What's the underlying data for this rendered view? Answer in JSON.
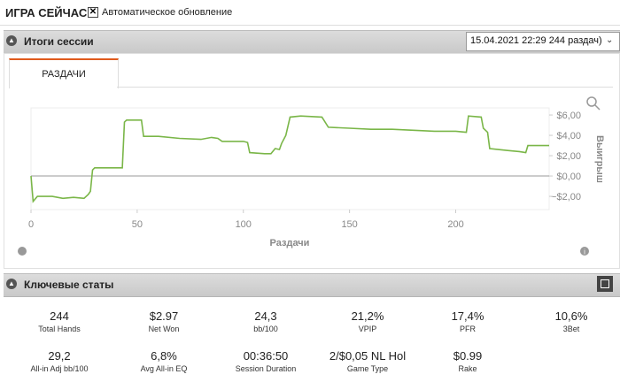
{
  "header": {
    "title": "ИГРА СЕЙЧАС",
    "auto_update": "Автоматическое обновление"
  },
  "session": {
    "title": "Итоги сессии",
    "dropdown": "15.04.2021 22:29 244 раздач)",
    "tab": "РАЗДАЧИ"
  },
  "chart_data": {
    "type": "line",
    "color": "#7ab648",
    "x_label": "Раздачи",
    "y_label": "Выигрыш",
    "x": [
      0,
      1,
      3,
      10,
      15,
      20,
      25,
      27,
      28,
      29,
      30,
      43,
      44,
      45,
      52,
      53,
      60,
      70,
      80,
      85,
      88,
      90,
      100,
      102,
      103,
      110,
      113,
      115,
      117,
      118,
      120,
      122,
      127,
      137,
      140,
      150,
      160,
      170,
      180,
      190,
      200,
      205,
      206,
      212,
      213,
      215,
      216,
      220,
      225,
      230,
      233,
      234,
      244
    ],
    "values": [
      0,
      -2.5,
      -2.0,
      -2.0,
      -2.2,
      -2.1,
      -2.2,
      -1.8,
      -1.5,
      0.6,
      0.8,
      0.8,
      5.3,
      5.5,
      5.5,
      3.9,
      3.9,
      3.7,
      3.6,
      3.8,
      3.7,
      3.4,
      3.4,
      3.3,
      2.3,
      2.2,
      2.2,
      2.7,
      2.6,
      3.2,
      4.0,
      5.8,
      5.9,
      5.8,
      4.8,
      4.7,
      4.6,
      4.6,
      4.5,
      4.4,
      4.4,
      4.3,
      5.9,
      5.8,
      4.7,
      4.3,
      2.7,
      2.6,
      2.5,
      2.4,
      2.3,
      3.0,
      3.0
    ],
    "xlim": [
      0,
      244
    ],
    "xticks": [
      0,
      50,
      100,
      150,
      200
    ],
    "ylim": [
      -3.3,
      6.7
    ],
    "yticks": [
      {
        "value": -2,
        "label": "−$2,00"
      },
      {
        "value": 0,
        "label": "$0,00"
      },
      {
        "value": 2,
        "label": "$2,00"
      },
      {
        "value": 4,
        "label": "$4,00"
      },
      {
        "value": 6,
        "label": "$6,00"
      }
    ],
    "grid": false
  },
  "stats": {
    "title": "Ключевые статы",
    "rows": [
      [
        {
          "value": "244",
          "label": "Total Hands"
        },
        {
          "value": "$2.97",
          "label": "Net Won"
        },
        {
          "value": "24,3",
          "label": "bb/100"
        },
        {
          "value": "21,2%",
          "label": "VPIP"
        },
        {
          "value": "17,4%",
          "label": "PFR"
        },
        {
          "value": "10,6%",
          "label": "3Bet"
        }
      ],
      [
        {
          "value": "29,2",
          "label": "All-in Adj bb/100"
        },
        {
          "value": "6,8%",
          "label": "Avg All-in EQ"
        },
        {
          "value": "00:36:50",
          "label": "Session Duration"
        },
        {
          "value": "2/$0,05 NL Hol",
          "label": "Game Type"
        },
        {
          "value": "$0.99",
          "label": "Rake"
        }
      ]
    ]
  }
}
